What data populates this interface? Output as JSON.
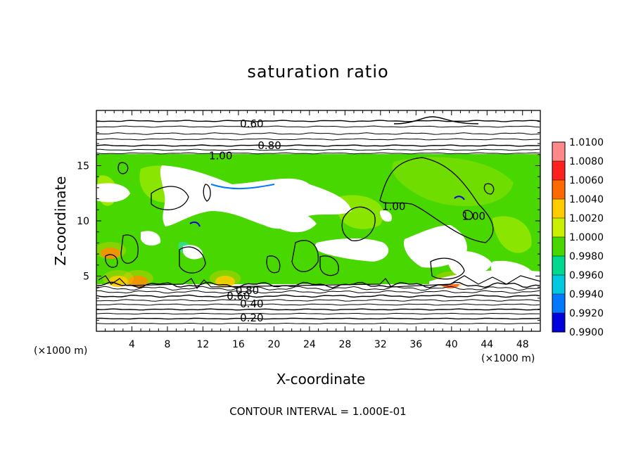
{
  "chart_data": {
    "type": "heatmap",
    "title": "saturation ratio",
    "xlabel": "X-coordinate",
    "ylabel": "Z-coordinate",
    "x_unit": "(×1000 m)",
    "xlim": [
      0,
      50
    ],
    "ylim": [
      0,
      20
    ],
    "x_ticks": [
      4,
      8,
      12,
      16,
      20,
      24,
      28,
      32,
      36,
      40,
      44,
      48
    ],
    "y_ticks": [
      5,
      10,
      15
    ],
    "colorbar": {
      "min": 0.99,
      "max": 1.01,
      "labels": [
        "1.0100",
        "1.0080",
        "1.0060",
        "1.0040",
        "1.0020",
        "1.0000",
        "0.9980",
        "0.9960",
        "0.9940",
        "0.9920",
        "0.9900"
      ],
      "colors": [
        "#ff8888",
        "#ff2020",
        "#ff6a00",
        "#ffcc00",
        "#c8f000",
        "#48d800",
        "#00d890",
        "#00c8e0",
        "#0078ff",
        "#0000dd",
        "#6a00b0"
      ]
    },
    "contour_labels": [
      {
        "text": "0.60",
        "x": 17.5,
        "y": 18.8
      },
      {
        "text": "0.80",
        "x": 19.5,
        "y": 16.8
      },
      {
        "text": "1.00",
        "x": 14.0,
        "y": 15.9
      },
      {
        "text": "1.00",
        "x": 33.5,
        "y": 11.3
      },
      {
        "text": "1.00",
        "x": 42.5,
        "y": 10.4
      },
      {
        "text": "0.80",
        "x": 17.0,
        "y": 3.7
      },
      {
        "text": "0.60",
        "x": 16.0,
        "y": 3.2
      },
      {
        "text": "0.40",
        "x": 17.5,
        "y": 2.5
      },
      {
        "text": "0.20",
        "x": 17.5,
        "y": 1.2
      }
    ],
    "contour_interval_text": "CONTOUR INTERVAL = 1.000E-01"
  }
}
